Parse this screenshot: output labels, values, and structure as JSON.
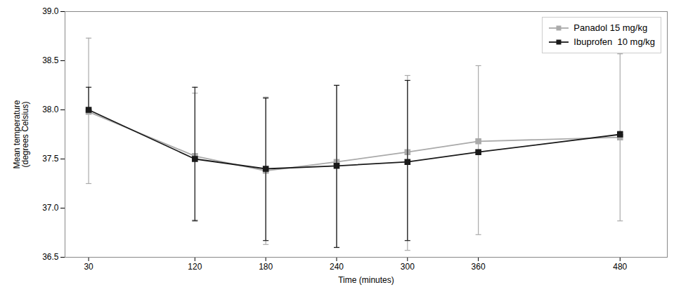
{
  "chart_data": {
    "type": "line",
    "xlabel": "Time (minutes)",
    "ylabel": "Mean temperature\n(degrees Celsius)",
    "x": [
      30,
      120,
      180,
      240,
      300,
      360,
      480
    ],
    "xlim": [
      10,
      520
    ],
    "xticks": [
      30,
      120,
      180,
      240,
      300,
      360,
      480
    ],
    "ylim": [
      36.5,
      39.0
    ],
    "yticks": [
      36.5,
      {
        "value": 37.0,
        "label": "37.0"
      },
      37.5,
      {
        "value": 38.0,
        "label": "38.0"
      },
      38.5,
      {
        "value": 39.0,
        "label": "39.0"
      }
    ],
    "grid": false,
    "legend": "upper right",
    "series": [
      {
        "name": "Panadol 15 mg/kg",
        "color": "#aaaaaa",
        "marker": "square",
        "line_style": "solid",
        "values": [
          37.98,
          37.53,
          37.38,
          37.47,
          37.57,
          37.68,
          37.72
        ],
        "error_lower": [
          0.73,
          0.65,
          0.75,
          0.87,
          1.0,
          0.95,
          0.85
        ],
        "error_upper": [
          0.75,
          0.64,
          0.75,
          0.78,
          0.78,
          0.77,
          0.85
        ]
      },
      {
        "name": "Ibuprofen  10 mg/kg",
        "color": "#1a1a1a",
        "marker": "square",
        "line_style": "solid",
        "values": [
          38.0,
          37.5,
          37.4,
          37.43,
          37.47,
          37.57,
          37.75
        ],
        "error_lower": [
          0.0,
          0.63,
          0.73,
          0.83,
          0.8,
          0.0,
          0.0
        ],
        "error_upper": [
          0.23,
          0.73,
          0.72,
          0.82,
          0.83,
          0.0,
          0.03
        ]
      }
    ]
  }
}
